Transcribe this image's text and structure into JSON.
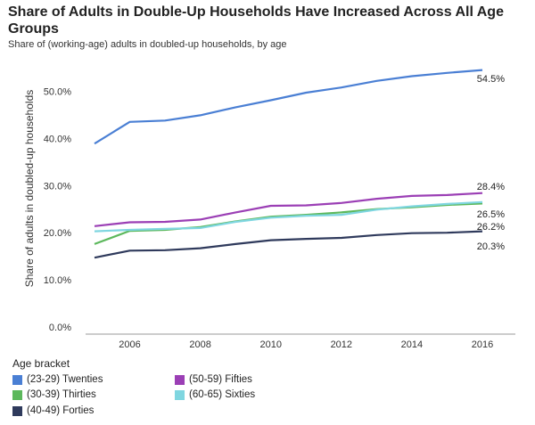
{
  "chart_data": {
    "type": "line",
    "title": "Share of Adults in Double-Up Households Have Increased Across All Age Groups",
    "subtitle": "Share of (working-age) adults in doubled-up households, by age",
    "ylabel": "Share of adults in doubled-up households",
    "xlabel": "",
    "ylim": [
      0,
      55
    ],
    "xlim": [
      2005,
      2016
    ],
    "x_ticks": [
      2006,
      2008,
      2010,
      2012,
      2014,
      2016
    ],
    "y_ticks": [
      "0.0%",
      "10.0%",
      "20.0%",
      "30.0%",
      "40.0%",
      "50.0%"
    ],
    "y_tick_values": [
      0,
      10,
      20,
      30,
      40,
      50
    ],
    "x": [
      2005,
      2006,
      2007,
      2008,
      2009,
      2010,
      2011,
      2012,
      2013,
      2014,
      2015,
      2016
    ],
    "legend_title": "Age bracket",
    "legend_position": "bottom",
    "grid": false,
    "series": [
      {
        "name": "(23-29) Twenties",
        "color": "#4a7fd4",
        "values": [
          38.9,
          43.5,
          43.8,
          44.9,
          46.6,
          48.1,
          49.7,
          50.8,
          52.2,
          53.2,
          53.9,
          54.5
        ],
        "end_label": "54.5%"
      },
      {
        "name": "(30-39) Thirties",
        "color": "#5cb85c",
        "values": [
          17.6,
          20.4,
          20.6,
          21.2,
          22.4,
          23.4,
          23.8,
          24.3,
          25.0,
          25.4,
          25.9,
          26.2
        ],
        "end_label": "26.2%"
      },
      {
        "name": "(40-49) Forties",
        "color": "#2f3a5c",
        "values": [
          14.7,
          16.2,
          16.3,
          16.7,
          17.6,
          18.4,
          18.7,
          18.9,
          19.5,
          19.9,
          20.0,
          20.3
        ],
        "end_label": "20.3%"
      },
      {
        "name": "(50-59) Fifties",
        "color": "#9b3fb5",
        "values": [
          21.4,
          22.2,
          22.3,
          22.8,
          24.3,
          25.7,
          25.8,
          26.3,
          27.2,
          27.8,
          28.0,
          28.4
        ],
        "end_label": "28.4%"
      },
      {
        "name": "(60-65) Sixties",
        "color": "#7fd6e0",
        "values": [
          20.3,
          20.6,
          20.8,
          21.0,
          22.3,
          23.2,
          23.6,
          23.8,
          24.9,
          25.6,
          26.1,
          26.5
        ],
        "end_label": "26.5%"
      }
    ]
  }
}
